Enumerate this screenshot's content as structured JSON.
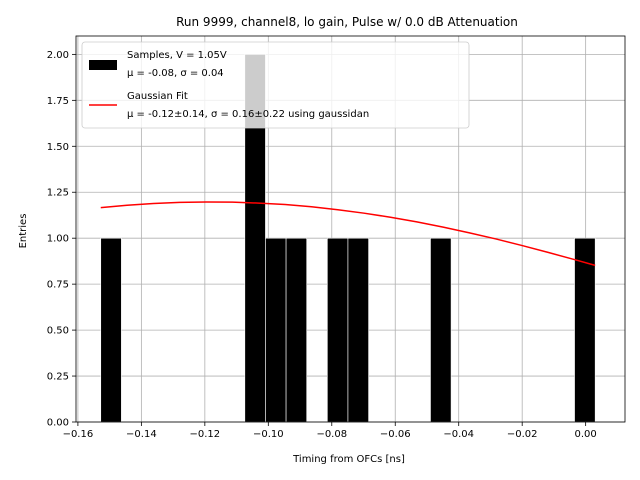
{
  "chart_data": {
    "type": "bar",
    "title": "Run 9999, channel8, lo gain, Pulse w/ 0.0 dB Attenuation",
    "xlabel": "Timing from OFCs [ns]",
    "ylabel": "Entries",
    "xlim": [
      -0.1606,
      0.0124
    ],
    "ylim": [
      0.0,
      2.1
    ],
    "xticks": [
      -0.16,
      -0.14,
      -0.12,
      -0.1,
      -0.08,
      -0.06,
      -0.04,
      -0.02,
      0.0
    ],
    "xtick_labels": [
      "−0.16",
      "−0.14",
      "−0.12",
      "−0.10",
      "−0.08",
      "−0.06",
      "−0.04",
      "−0.02",
      "0.00"
    ],
    "yticks": [
      0.0,
      0.25,
      0.5,
      0.75,
      1.0,
      1.25,
      1.5,
      1.75,
      2.0
    ],
    "ytick_labels": [
      "0.00",
      "0.25",
      "0.50",
      "0.75",
      "1.00",
      "1.25",
      "1.50",
      "1.75",
      "2.00"
    ],
    "grid": true,
    "legend_position": "top-left",
    "bin_width": 0.0065,
    "histogram": {
      "name": "Samples, V = 1.05V",
      "stats": "μ = -0.08, σ = 0.04",
      "color": "#000000",
      "bins": [
        {
          "x0": -0.1528,
          "x1": -0.1463,
          "count": 1
        },
        {
          "x0": -0.1074,
          "x1": -0.1009,
          "count": 2
        },
        {
          "x0": -0.1009,
          "x1": -0.0944,
          "count": 1
        },
        {
          "x0": -0.0944,
          "x1": -0.0879,
          "count": 1
        },
        {
          "x0": -0.0814,
          "x1": -0.0749,
          "count": 1
        },
        {
          "x0": -0.0749,
          "x1": -0.0684,
          "count": 1
        },
        {
          "x0": -0.0489,
          "x1": -0.0424,
          "count": 1
        },
        {
          "x0": -0.0035,
          "x1": 0.003,
          "count": 1
        }
      ]
    },
    "fit": {
      "name": "Gaussian Fit",
      "stats": "μ = -0.12±0.14, σ = 0.16±0.22 using gaussidan",
      "color": "#ff0000",
      "x": [
        -0.1528,
        -0.1445,
        -0.1362,
        -0.1279,
        -0.1196,
        -0.1113,
        -0.103,
        -0.0947,
        -0.0864,
        -0.0781,
        -0.0698,
        -0.0615,
        -0.0532,
        -0.0449,
        -0.0366,
        -0.0283,
        -0.02,
        -0.0117,
        -0.0034,
        0.003
      ],
      "y": [
        1.166,
        1.179,
        1.189,
        1.195,
        1.197,
        1.196,
        1.191,
        1.183,
        1.171,
        1.155,
        1.136,
        1.114,
        1.089,
        1.06,
        1.029,
        0.996,
        0.96,
        0.922,
        0.883,
        0.852
      ]
    }
  }
}
